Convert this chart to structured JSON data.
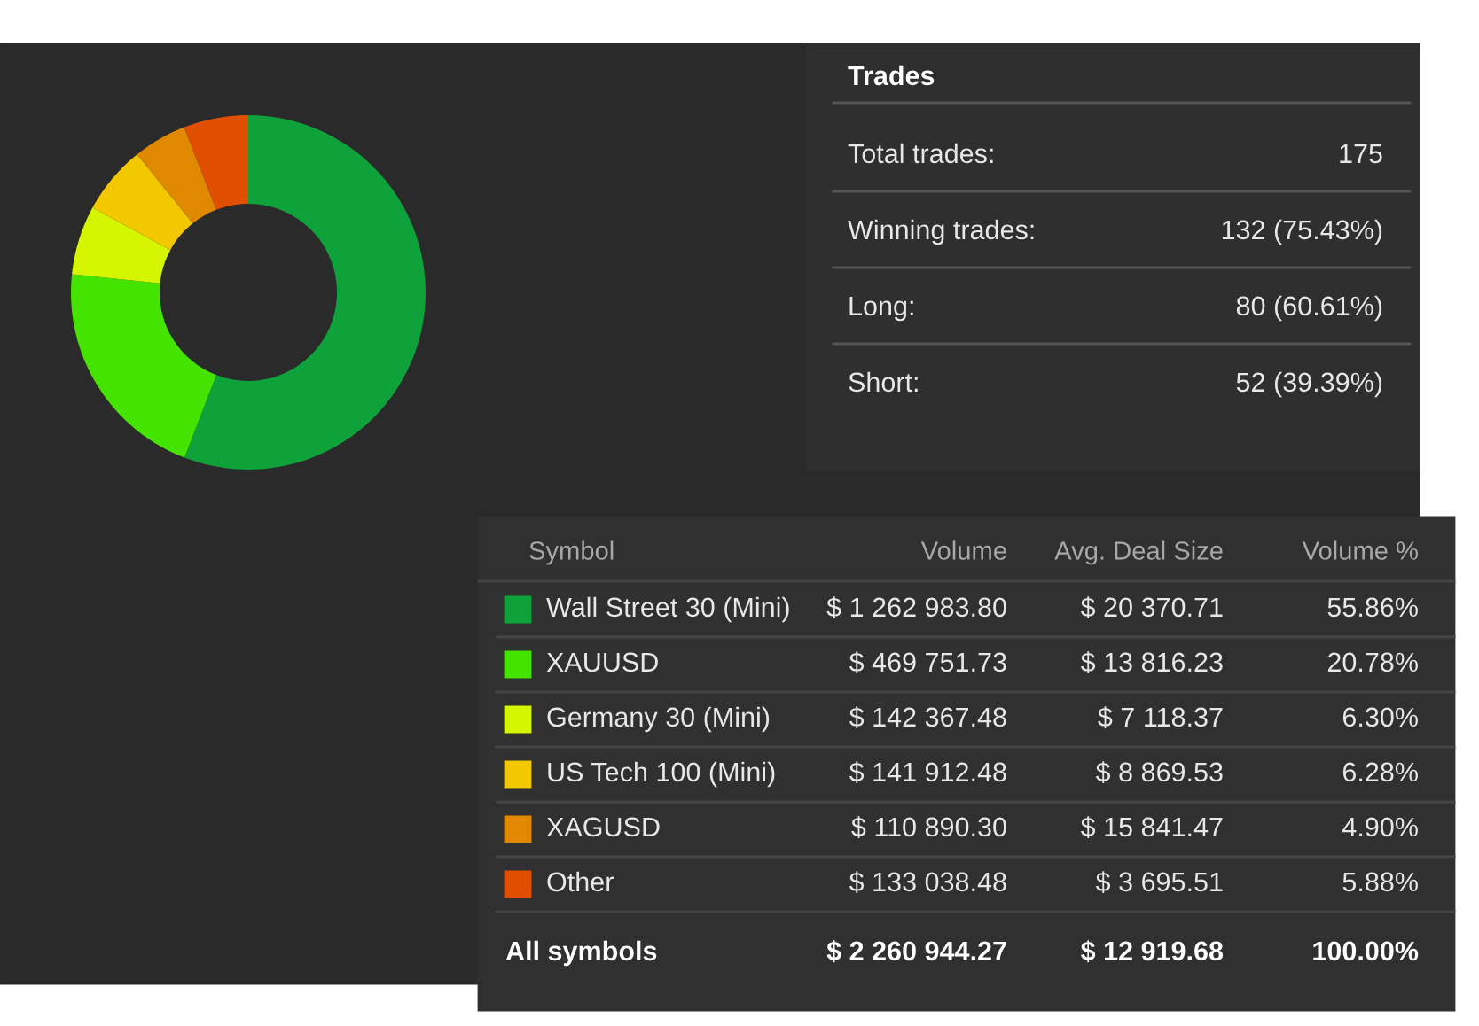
{
  "chart_data": [
    {
      "type": "donut",
      "categories": [
        "Wall Street 30 (Mini)",
        "XAUUSD",
        "Germany 30 (Mini)",
        "US Tech 100 (Mini)",
        "XAGUSD",
        "Other"
      ],
      "values": [
        55.86,
        20.78,
        6.3,
        6.28,
        4.9,
        5.88
      ],
      "colors": [
        "#0fa23b",
        "#45e400",
        "#d6f500",
        "#f4c800",
        "#e08800",
        "#e04f00"
      ],
      "value_labels": [
        "55.86%",
        "20.78%",
        "6.30%",
        "6.28%",
        "4.90%",
        "5.88%"
      ],
      "legend": "bottom right",
      "annotations": [
        "Symbol",
        "Volume",
        "Avg. Deal Size",
        "Volume %",
        "$ 1 262 983.80",
        "$ 20 370.71",
        "$ 469 751.73",
        "$ 13 816.23",
        "$ 142 367.48",
        "$ 7 118.37",
        "$ 141 912.48",
        "$ 8 869.53",
        "$ 110 890.30",
        "$ 15 841.47",
        "$ 133 038.48",
        "$ 3 695.51",
        "All symbols",
        "$ 2 260 944.27",
        "$ 12 919.68",
        "100.00%"
      ]
    },
    {
      "type": "other",
      "title": "Trades",
      "annotations": [
        "Total trades:",
        "175",
        "Winning trades:",
        "132 (75.43%)",
        "Long:",
        "80 (60.61%)",
        "Short:",
        "52 (39.39%)"
      ]
    }
  ]
}
